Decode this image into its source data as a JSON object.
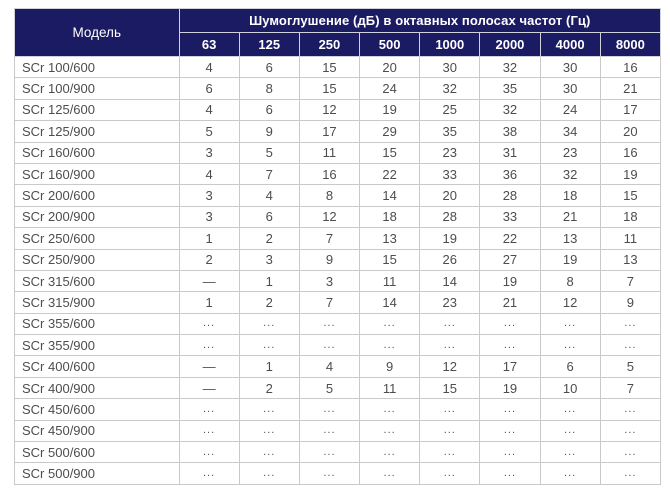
{
  "table": {
    "model_header": "Модель",
    "group_header": "Шумоглушение (дБ) в октавных полосах частот (Гц)",
    "freq_headers": [
      "63",
      "125",
      "250",
      "500",
      "1000",
      "2000",
      "4000",
      "8000"
    ],
    "rows": [
      {
        "model": "SCr 100/600",
        "values": [
          "4",
          "6",
          "15",
          "20",
          "30",
          "32",
          "30",
          "16"
        ]
      },
      {
        "model": "SCr 100/900",
        "values": [
          "6",
          "8",
          "15",
          "24",
          "32",
          "35",
          "30",
          "21"
        ]
      },
      {
        "model": "SCr 125/600",
        "values": [
          "4",
          "6",
          "12",
          "19",
          "25",
          "32",
          "24",
          "17"
        ]
      },
      {
        "model": "SCr 125/900",
        "values": [
          "5",
          "9",
          "17",
          "29",
          "35",
          "38",
          "34",
          "20"
        ]
      },
      {
        "model": "SCr 160/600",
        "values": [
          "3",
          "5",
          "11",
          "15",
          "23",
          "31",
          "23",
          "16"
        ]
      },
      {
        "model": "SCr 160/900",
        "values": [
          "4",
          "7",
          "16",
          "22",
          "33",
          "36",
          "32",
          "19"
        ]
      },
      {
        "model": "SCr 200/600",
        "values": [
          "3",
          "4",
          "8",
          "14",
          "20",
          "28",
          "18",
          "15"
        ]
      },
      {
        "model": "SCr 200/900",
        "values": [
          "3",
          "6",
          "12",
          "18",
          "28",
          "33",
          "21",
          "18"
        ]
      },
      {
        "model": "SCr 250/600",
        "values": [
          "1",
          "2",
          "7",
          "13",
          "19",
          "22",
          "13",
          "11"
        ]
      },
      {
        "model": "SCr 250/900",
        "values": [
          "2",
          "3",
          "9",
          "15",
          "26",
          "27",
          "19",
          "13"
        ]
      },
      {
        "model": "SCr 315/600",
        "values": [
          "—",
          "1",
          "3",
          "11",
          "14",
          "19",
          "8",
          "7"
        ]
      },
      {
        "model": "SCr 315/900",
        "values": [
          "1",
          "2",
          "7",
          "14",
          "23",
          "21",
          "12",
          "9"
        ]
      },
      {
        "model": "SCr 355/600",
        "values": [
          "...",
          "...",
          "...",
          "...",
          "...",
          "...",
          "...",
          "..."
        ]
      },
      {
        "model": "SCr 355/900",
        "values": [
          "...",
          "...",
          "...",
          "...",
          "...",
          "...",
          "...",
          "..."
        ]
      },
      {
        "model": "SCr 400/600",
        "values": [
          "—",
          "1",
          "4",
          "9",
          "12",
          "17",
          "6",
          "5"
        ]
      },
      {
        "model": "SCr 400/900",
        "values": [
          "—",
          "2",
          "5",
          "11",
          "15",
          "19",
          "10",
          "7"
        ]
      },
      {
        "model": "SCr 450/600",
        "values": [
          "...",
          "...",
          "...",
          "...",
          "...",
          "...",
          "...",
          "..."
        ]
      },
      {
        "model": "SCr 450/900",
        "values": [
          "...",
          "...",
          "...",
          "...",
          "...",
          "...",
          "...",
          "..."
        ]
      },
      {
        "model": "SCr 500/600",
        "values": [
          "...",
          "...",
          "...",
          "...",
          "...",
          "...",
          "...",
          "..."
        ]
      },
      {
        "model": "SCr 500/900",
        "values": [
          "...",
          "...",
          "...",
          "...",
          "...",
          "...",
          "...",
          "..."
        ]
      }
    ],
    "colors": {
      "header_bg": "#1b1b64",
      "header_text": "#ffffff",
      "body_text": "#4d4d4d",
      "border": "#c9c9c9"
    }
  }
}
